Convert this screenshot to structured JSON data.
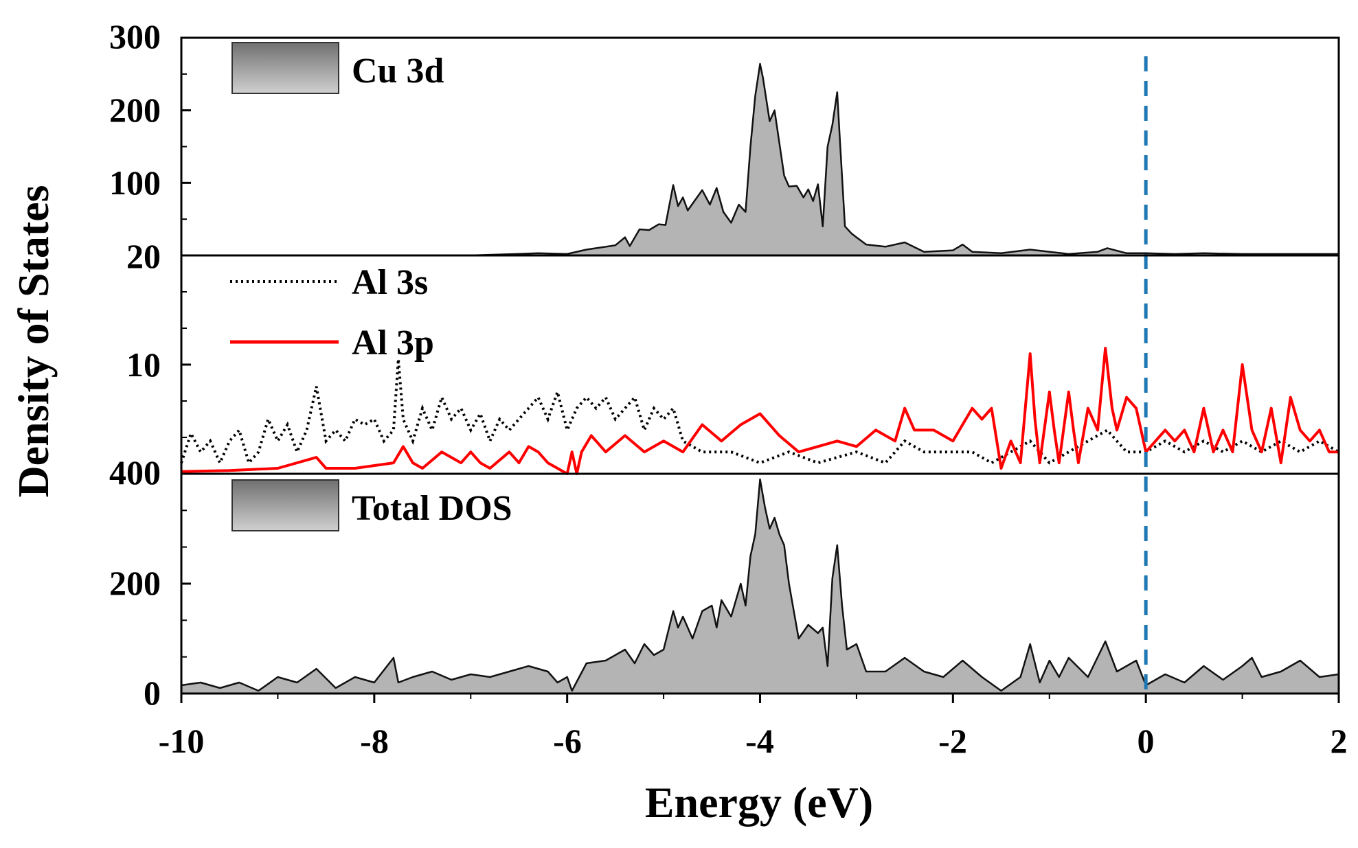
{
  "chart_data": {
    "type": "area",
    "xlabel": "Energy (eV)",
    "ylabel": "Density of States",
    "xlim": [
      -10,
      2
    ],
    "x_ticks": [
      "-10",
      "-8",
      "-6",
      "-4",
      "-2",
      "0",
      "2"
    ],
    "fermi_level": 0,
    "colors": {
      "fill": "#b4b4b4",
      "fill_dark": "#6e6e6e",
      "line": "#111111",
      "al3p": "#ff0000",
      "fermi": "#1f78b4"
    },
    "panels": [
      {
        "id": "cu3d",
        "legend": "Cu 3d",
        "ylim": [
          0,
          300
        ],
        "y_ticks": [
          "300",
          "200",
          "100"
        ],
        "series": [
          {
            "name": "Cu 3d",
            "style": "filled",
            "x": [
              -10,
              -7,
              -6.3,
              -6,
              -5.8,
              -5.5,
              -5.4,
              -5.35,
              -5.25,
              -5.15,
              -5.05,
              -4.98,
              -4.9,
              -4.85,
              -4.8,
              -4.75,
              -4.6,
              -4.52,
              -4.45,
              -4.38,
              -4.3,
              -4.22,
              -4.15,
              -4.1,
              -4.05,
              -4.0,
              -3.97,
              -3.9,
              -3.85,
              -3.8,
              -3.75,
              -3.7,
              -3.62,
              -3.55,
              -3.5,
              -3.45,
              -3.4,
              -3.35,
              -3.3,
              -3.25,
              -3.2,
              -3.17,
              -3.12,
              -3.05,
              -3.0,
              -2.9,
              -2.7,
              -2.5,
              -2.3,
              -2.0,
              -1.9,
              -1.8,
              -1.5,
              -1.2,
              -1.0,
              -0.8,
              -0.5,
              -0.4,
              -0.2,
              0,
              0.3,
              0.6,
              1.0,
              1.5,
              2.0
            ],
            "y": [
              0,
              0,
              3,
              2,
              8,
              14,
              25,
              13,
              36,
              35,
              43,
              42,
              97,
              68,
              80,
              62,
              90,
              70,
              93,
              60,
              45,
              70,
              60,
              150,
              220,
              264,
              245,
              185,
              200,
              155,
              110,
              95,
              96,
              80,
              91,
              75,
              98,
              40,
              150,
              180,
              225,
              155,
              40,
              30,
              25,
              15,
              12,
              18,
              5,
              7,
              15,
              5,
              3,
              8,
              5,
              2,
              5,
              10,
              3,
              3,
              2,
              3,
              2,
              2,
              2
            ]
          }
        ]
      },
      {
        "id": "al",
        "ylim": [
          0,
          20
        ],
        "y_ticks": [
          "20",
          "10"
        ],
        "series": [
          {
            "name": "Al 3s",
            "legend": "Al 3s",
            "style": "dotted",
            "x": [
              -10,
              -9.9,
              -9.8,
              -9.7,
              -9.6,
              -9.5,
              -9.4,
              -9.3,
              -9.2,
              -9.1,
              -9.0,
              -8.9,
              -8.8,
              -8.7,
              -8.6,
              -8.5,
              -8.4,
              -8.3,
              -8.2,
              -8.1,
              -8.0,
              -7.9,
              -7.8,
              -7.75,
              -7.7,
              -7.6,
              -7.5,
              -7.4,
              -7.3,
              -7.2,
              -7.1,
              -7.0,
              -6.9,
              -6.8,
              -6.7,
              -6.6,
              -6.5,
              -6.4,
              -6.3,
              -6.2,
              -6.1,
              -6.0,
              -5.9,
              -5.8,
              -5.7,
              -5.6,
              -5.5,
              -5.4,
              -5.3,
              -5.2,
              -5.1,
              -5.0,
              -4.9,
              -4.8,
              -4.6,
              -4.3,
              -4.0,
              -3.7,
              -3.4,
              -3.0,
              -2.7,
              -2.5,
              -2.3,
              -2.0,
              -1.8,
              -1.6,
              -1.4,
              -1.2,
              -1.0,
              -0.8,
              -0.6,
              -0.4,
              -0.3,
              -0.2,
              0,
              0.2,
              0.4,
              0.6,
              0.8,
              1.0,
              1.2,
              1.4,
              1.6,
              1.8,
              2.0
            ],
            "y": [
              1,
              3.7,
              2,
              3,
              1,
              3,
              4,
              1,
              2,
              5,
              3,
              4.5,
              2,
              4,
              8,
              3,
              4,
              3,
              5,
              4.5,
              5,
              3,
              4,
              10.5,
              5,
              3,
              6,
              4,
              7,
              5,
              6,
              4,
              5.5,
              3,
              5,
              4,
              5,
              6,
              7,
              5,
              7.5,
              4,
              6,
              7,
              6,
              7,
              5,
              6,
              7,
              4,
              6,
              5,
              6,
              3,
              2,
              2,
              1,
              2,
              1,
              2,
              1,
              3,
              2,
              2,
              2,
              1,
              2,
              3,
              1,
              2,
              3,
              4,
              3,
              2,
              2,
              3,
              2,
              3,
              2,
              3,
              2,
              3,
              2,
              3,
              2
            ]
          },
          {
            "name": "Al 3p",
            "legend": "Al 3p",
            "style": "solid",
            "x": [
              -10,
              -9.5,
              -9.0,
              -8.6,
              -8.5,
              -8.2,
              -7.8,
              -7.7,
              -7.6,
              -7.5,
              -7.3,
              -7.1,
              -7.0,
              -6.9,
              -6.8,
              -6.6,
              -6.5,
              -6.4,
              -6.3,
              -6.2,
              -6.0,
              -5.95,
              -5.9,
              -5.85,
              -5.75,
              -5.6,
              -5.4,
              -5.2,
              -5.0,
              -4.8,
              -4.6,
              -4.4,
              -4.2,
              -4.0,
              -3.8,
              -3.6,
              -3.4,
              -3.2,
              -3.0,
              -2.8,
              -2.6,
              -2.5,
              -2.4,
              -2.2,
              -2.0,
              -1.8,
              -1.7,
              -1.6,
              -1.5,
              -1.4,
              -1.3,
              -1.2,
              -1.15,
              -1.1,
              -1.0,
              -0.95,
              -0.9,
              -0.8,
              -0.75,
              -0.7,
              -0.6,
              -0.5,
              -0.42,
              -0.35,
              -0.3,
              -0.2,
              -0.1,
              0,
              0.1,
              0.2,
              0.3,
              0.4,
              0.5,
              0.6,
              0.7,
              0.8,
              0.9,
              1.0,
              1.1,
              1.2,
              1.3,
              1.4,
              1.5,
              1.6,
              1.7,
              1.8,
              1.9,
              2.0
            ],
            "y": [
              0.2,
              0.3,
              0.5,
              1.5,
              0.5,
              0.5,
              1,
              2.5,
              1,
              0.5,
              2,
              1,
              2,
              1,
              0.5,
              2,
              1,
              2.5,
              2,
              1,
              0,
              2,
              0,
              2,
              3.5,
              2,
              3.5,
              2,
              3,
              2,
              4.5,
              3,
              4.5,
              5.5,
              3.5,
              2,
              2.5,
              3,
              2.5,
              4,
              3,
              6,
              4,
              4,
              3,
              6,
              5,
              6,
              0.5,
              3,
              1,
              11,
              5,
              1,
              7.5,
              4,
              1,
              7.5,
              4,
              1,
              6,
              4,
              11.5,
              6,
              4,
              7,
              6,
              2,
              3,
              4,
              3,
              4,
              2,
              6,
              2,
              4,
              2,
              10,
              4,
              2,
              6,
              1,
              7,
              4,
              3,
              4,
              2,
              2
            ]
          }
        ]
      },
      {
        "id": "total",
        "legend": "Total DOS",
        "ylim": [
          0,
          400
        ],
        "y_ticks": [
          "400",
          "200",
          "0"
        ],
        "series": [
          {
            "name": "Total DOS",
            "style": "filled",
            "x": [
              -10,
              -9.8,
              -9.6,
              -9.4,
              -9.2,
              -9.0,
              -8.8,
              -8.6,
              -8.4,
              -8.2,
              -8.0,
              -7.8,
              -7.75,
              -7.6,
              -7.4,
              -7.2,
              -7.0,
              -6.8,
              -6.6,
              -6.4,
              -6.2,
              -6.1,
              -6.0,
              -5.95,
              -5.8,
              -5.6,
              -5.4,
              -5.3,
              -5.2,
              -5.1,
              -5.0,
              -4.9,
              -4.85,
              -4.8,
              -4.7,
              -4.6,
              -4.5,
              -4.45,
              -4.4,
              -4.3,
              -4.2,
              -4.15,
              -4.1,
              -4.05,
              -4.0,
              -3.95,
              -3.9,
              -3.85,
              -3.8,
              -3.75,
              -3.7,
              -3.6,
              -3.5,
              -3.4,
              -3.35,
              -3.3,
              -3.25,
              -3.2,
              -3.15,
              -3.1,
              -3.0,
              -2.9,
              -2.7,
              -2.5,
              -2.3,
              -2.1,
              -1.9,
              -1.7,
              -1.5,
              -1.3,
              -1.2,
              -1.1,
              -1.0,
              -0.9,
              -0.8,
              -0.6,
              -0.42,
              -0.3,
              -0.1,
              0,
              0.2,
              0.4,
              0.6,
              0.8,
              1.0,
              1.1,
              1.2,
              1.4,
              1.6,
              1.8,
              2.0
            ],
            "y": [
              15,
              20,
              10,
              20,
              5,
              30,
              20,
              45,
              10,
              30,
              20,
              65,
              20,
              30,
              40,
              25,
              35,
              30,
              40,
              50,
              40,
              20,
              30,
              5,
              55,
              60,
              80,
              55,
              90,
              70,
              80,
              150,
              120,
              140,
              100,
              150,
              160,
              120,
              170,
              140,
              200,
              160,
              250,
              290,
              390,
              340,
              300,
              320,
              290,
              270,
              200,
              100,
              125,
              110,
              120,
              50,
              210,
              270,
              160,
              80,
              90,
              40,
              40,
              65,
              40,
              30,
              60,
              30,
              5,
              30,
              90,
              20,
              60,
              30,
              65,
              30,
              95,
              40,
              60,
              15,
              35,
              20,
              50,
              25,
              50,
              65,
              30,
              40,
              60,
              30,
              35
            ]
          }
        ]
      }
    ]
  }
}
